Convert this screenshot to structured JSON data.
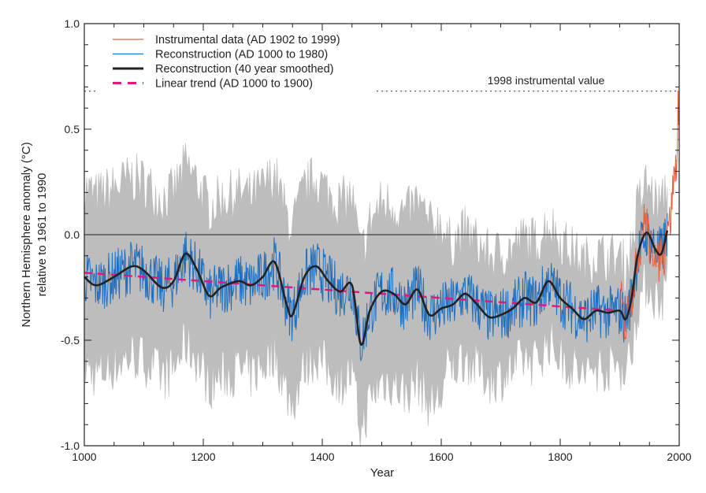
{
  "chart_data": {
    "type": "line",
    "title": "",
    "xlabel": "Year",
    "ylabel_line1": "Northern Hemisphere anomaly (°C)",
    "ylabel_line2": "relative to 1961 to 1990",
    "xlim": [
      1000,
      2000
    ],
    "ylim": [
      -1.0,
      1.0
    ],
    "x_ticks": [
      "1000",
      "1200",
      "1400",
      "1600",
      "1800",
      "2000"
    ],
    "y_ticks": [
      "1.0",
      "0.5",
      "0.0",
      "-0.5",
      "-1.0"
    ],
    "grid": false,
    "legend_position": "top-left",
    "legend": [
      {
        "label": "Instrumental data (AD 1902 to 1999)",
        "color": "#e8603c",
        "style": "thin"
      },
      {
        "label": "Reconstruction (AD 1000 to 1980)",
        "color": "#1f6fc0",
        "style": "thin"
      },
      {
        "label": "Reconstruction (40 year smoothed)",
        "color": "#222222",
        "style": "thick"
      },
      {
        "label": "Linear trend (AD 1000 to 1900)",
        "color": "#e0197d",
        "style": "dashed"
      }
    ],
    "reference_line": {
      "label": "1998 instrumental value",
      "value": 0.68
    },
    "zero_line": 0.0,
    "colors": {
      "uncertainty": "#bdbdbd",
      "reconstruction": "#1f6fc0",
      "instrumental": "#e8603c",
      "smoothed": "#222222",
      "trend": "#e0197d"
    },
    "smoothed": {
      "x": [
        1000,
        1020,
        1050,
        1080,
        1100,
        1130,
        1150,
        1170,
        1190,
        1210,
        1230,
        1260,
        1280,
        1300,
        1320,
        1340,
        1350,
        1370,
        1390,
        1410,
        1430,
        1450,
        1465,
        1480,
        1500,
        1520,
        1540,
        1560,
        1580,
        1600,
        1620,
        1640,
        1660,
        1680,
        1700,
        1720,
        1740,
        1760,
        1780,
        1800,
        1820,
        1840,
        1860,
        1880,
        1900,
        1910,
        1920,
        1930,
        1945,
        1960,
        1970,
        1980
      ],
      "y": [
        -0.2,
        -0.24,
        -0.2,
        -0.15,
        -0.17,
        -0.25,
        -0.22,
        -0.09,
        -0.17,
        -0.29,
        -0.25,
        -0.22,
        -0.24,
        -0.2,
        -0.13,
        -0.33,
        -0.38,
        -0.2,
        -0.15,
        -0.22,
        -0.27,
        -0.24,
        -0.52,
        -0.36,
        -0.27,
        -0.28,
        -0.33,
        -0.26,
        -0.38,
        -0.35,
        -0.33,
        -0.28,
        -0.33,
        -0.39,
        -0.38,
        -0.35,
        -0.3,
        -0.32,
        -0.22,
        -0.3,
        -0.35,
        -0.4,
        -0.36,
        -0.37,
        -0.36,
        -0.4,
        -0.3,
        -0.1,
        0.01,
        -0.07,
        -0.09,
        0.02
      ]
    },
    "trend": {
      "x": [
        1000,
        1900
      ],
      "y": [
        -0.18,
        -0.36
      ]
    },
    "uncertainty_halfwidth": {
      "x": [
        1000,
        1600,
        1610,
        1850,
        1980
      ],
      "y": [
        0.42,
        0.42,
        0.3,
        0.27,
        0.22
      ]
    },
    "reconstruction_variability": 0.1,
    "instrumental": {
      "x": [
        1902,
        1905,
        1910,
        1915,
        1920,
        1925,
        1930,
        1935,
        1940,
        1945,
        1950,
        1955,
        1960,
        1965,
        1970,
        1975,
        1980,
        1985,
        1990,
        1995,
        1997,
        1998,
        1999
      ],
      "y": [
        -0.3,
        -0.35,
        -0.45,
        -0.3,
        -0.3,
        -0.2,
        -0.1,
        -0.05,
        0.05,
        0.1,
        -0.05,
        -0.1,
        -0.05,
        -0.15,
        -0.05,
        -0.1,
        0.1,
        0.05,
        0.25,
        0.35,
        0.4,
        0.68,
        0.45
      ]
    }
  }
}
